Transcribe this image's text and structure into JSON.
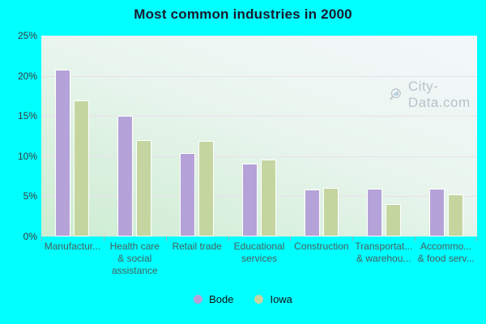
{
  "title": "Most common industries in 2000",
  "watermark": {
    "text": "City-Data.com"
  },
  "colors": {
    "background": "#00ffff",
    "plot_gradient_top": "#f4f8fb",
    "plot_gradient_bottom": "#ccecd1",
    "gridline": "#e9dded",
    "bode_bar": "#b5a2d8",
    "iowa_bar": "#c5d5a0",
    "bar_border": "#ffffff",
    "title_text": "#1a1a2e",
    "axis_text": "#4d5c5c",
    "watermark_text": "#aab6bf"
  },
  "legend": {
    "items": [
      {
        "label": "Bode",
        "color": "#b5a2d8"
      },
      {
        "label": "Iowa",
        "color": "#c5d5a0"
      }
    ],
    "position": "bottom-center"
  },
  "y_axis": {
    "tick_labels": [
      "25%",
      "20%",
      "15%",
      "10%",
      "5%",
      "0%"
    ]
  },
  "chart_data": {
    "type": "bar",
    "title": "Most common industries in 2000",
    "categories": [
      "Manufactur...",
      "Health care & social assistance",
      "Retail trade",
      "Educational services",
      "Construction",
      "Transportat... & warehou...",
      "Accommo... & food serv..."
    ],
    "category_label_lines": [
      [
        "Manufactur..."
      ],
      [
        "Health care",
        "& social",
        "assistance"
      ],
      [
        "Retail trade"
      ],
      [
        "Educational",
        "services"
      ],
      [
        "Construction"
      ],
      [
        "Transportat...",
        "& warehou..."
      ],
      [
        "Accommo...",
        "& food serv..."
      ]
    ],
    "series": [
      {
        "name": "Bode",
        "color": "#b5a2d8",
        "values": [
          20.8,
          15.0,
          10.4,
          9.1,
          5.8,
          5.9,
          5.9
        ]
      },
      {
        "name": "Iowa",
        "color": "#c5d5a0",
        "values": [
          16.9,
          12.0,
          11.9,
          9.6,
          6.1,
          4.0,
          5.2
        ]
      }
    ],
    "xlabel": "",
    "ylabel": "",
    "ylim": [
      0,
      25
    ],
    "ytick_step": 5,
    "grid": "horizontal",
    "legend_position": "bottom-center"
  }
}
